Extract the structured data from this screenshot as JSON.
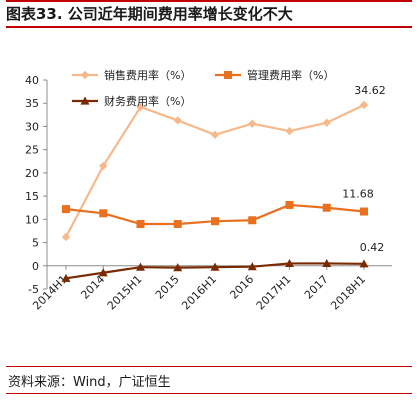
{
  "header": {
    "title": "图表33.  公司近年期间费用率增长变化不大"
  },
  "footer": {
    "source": "资料来源：Wind，广证恒生"
  },
  "colors": {
    "accent_rule": "#c00000",
    "sales_rate": "#f7b98b",
    "admin_rate": "#e8701f",
    "finance_rate": "#7a2a00"
  },
  "chart_data": {
    "type": "line",
    "title": "",
    "xlabel": "",
    "ylabel": "",
    "categories": [
      "2014H1",
      "2014",
      "2015H1",
      "2015",
      "2016H1",
      "2016",
      "2017H1",
      "2017",
      "2018H1"
    ],
    "ylim": [
      -5,
      40
    ],
    "yticks": [
      -5,
      0,
      5,
      10,
      15,
      20,
      25,
      30,
      35,
      40
    ],
    "grid": false,
    "legend_position": "top-center",
    "series": [
      {
        "name": "销售费用率（%）",
        "marker": "diamond",
        "values": [
          6.2,
          21.5,
          34.2,
          31.3,
          28.2,
          30.6,
          29.0,
          30.8,
          34.62
        ]
      },
      {
        "name": "管理费用率（%）",
        "marker": "square",
        "values": [
          12.2,
          11.3,
          9.0,
          9.0,
          9.6,
          9.8,
          13.1,
          12.5,
          11.68
        ]
      },
      {
        "name": "财务费用率（%）",
        "marker": "triangle",
        "values": [
          -2.7,
          -1.5,
          -0.3,
          -0.4,
          -0.3,
          -0.2,
          0.5,
          0.5,
          0.42
        ]
      }
    ],
    "data_labels": [
      {
        "series": 0,
        "index": 8,
        "text": "34.62"
      },
      {
        "series": 1,
        "index": 8,
        "text": "11.68"
      },
      {
        "series": 2,
        "index": 8,
        "text": "0.42"
      }
    ]
  }
}
